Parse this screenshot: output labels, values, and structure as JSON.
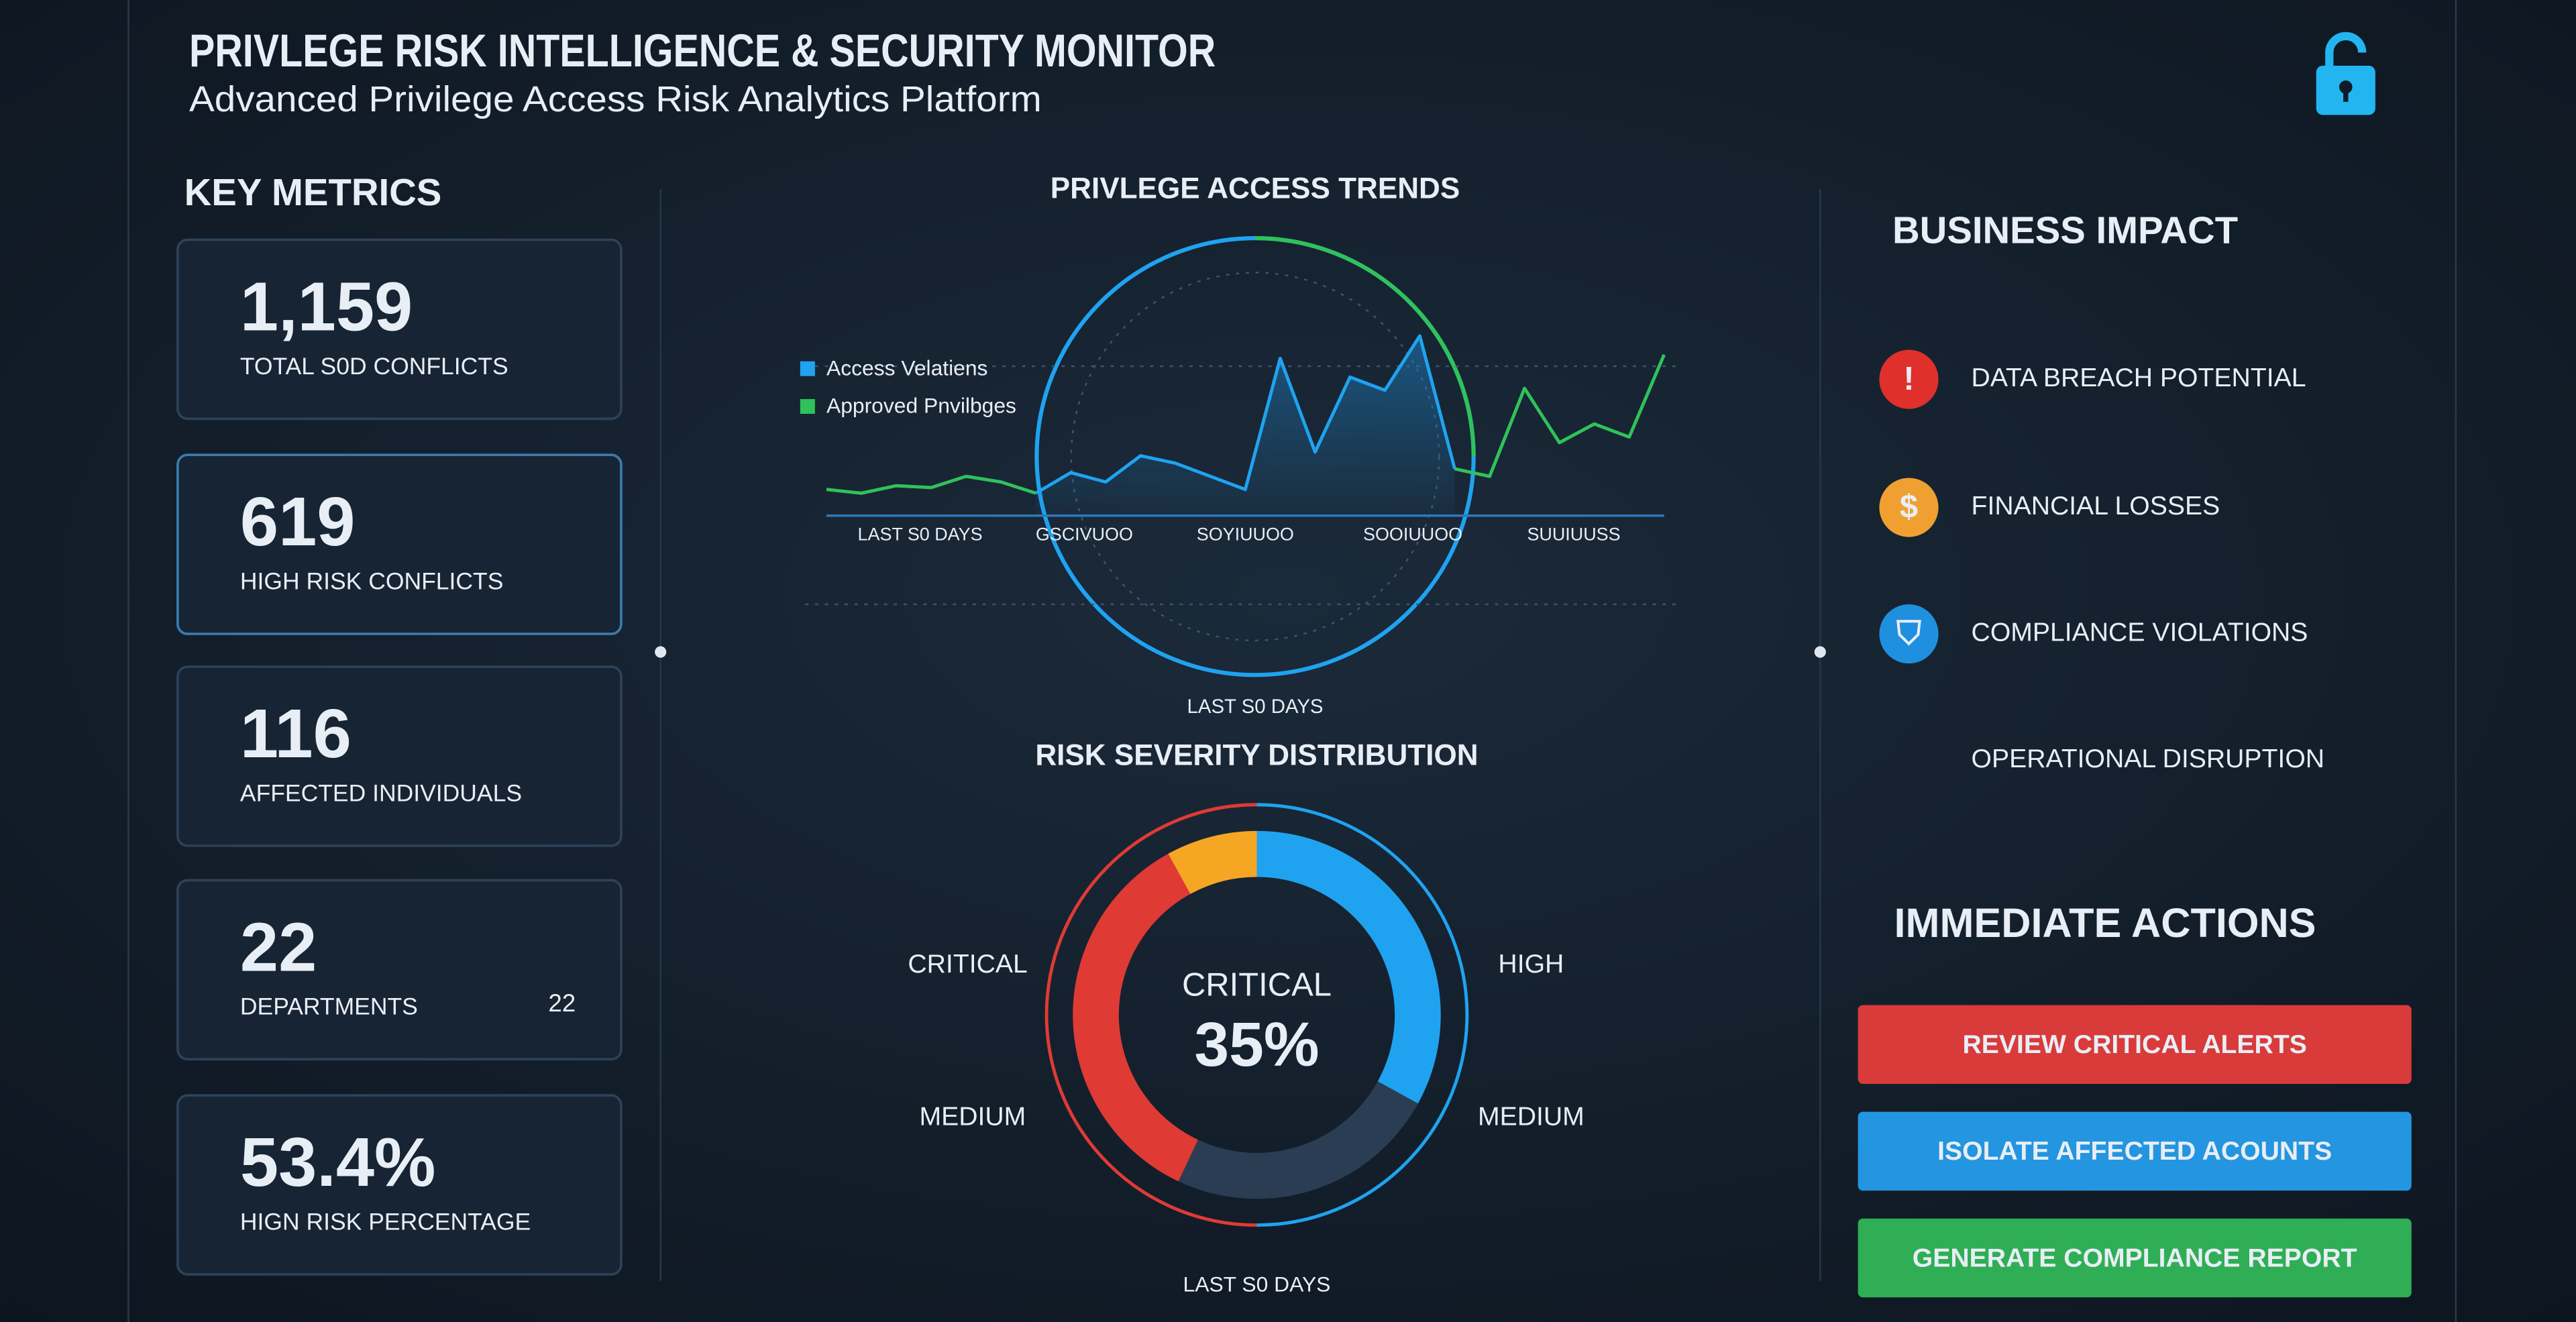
{
  "header": {
    "title": "PRIVLEGE RISK INTELLIGENCE & SECURITY MONITOR",
    "subtitle": "Advanced Privilege Access Risk Analytics Platform"
  },
  "metrics": {
    "heading": "KEY METRICS",
    "cards": [
      {
        "value": "1,159",
        "label": "TOTAL S0D CONFLICTS",
        "color": "#22a9f2"
      },
      {
        "value": "619",
        "label": "HIGH RISK CONFLICTS",
        "color": "#e8403a"
      },
      {
        "value": "116",
        "label": "AFFECTED INDIVIDUALS",
        "color": "#22a9f2"
      },
      {
        "value": "22",
        "label": "DEPARTMENTS",
        "color": "#22a9f2",
        "note": "22"
      },
      {
        "value": "53.4%",
        "label": "HIGN RISK PERCENTAGE",
        "color": "#f5a623"
      }
    ]
  },
  "chart_data": [
    {
      "type": "line",
      "title": "PRIVLEGE ACCESS TRENDS",
      "ylim": [
        0,
        100
      ],
      "series": [
        {
          "name": "Access Velatiens",
          "color": "#1fa3f0",
          "values": [
            null,
            null,
            null,
            null,
            null,
            null,
            12,
            23,
            18,
            32,
            28,
            21,
            14,
            84,
            34,
            74,
            67,
            96,
            25,
            null,
            null,
            null,
            null,
            null,
            null
          ]
        },
        {
          "name": "Approved Pnvilbges",
          "color": "#2fc25b",
          "values": [
            14,
            12,
            16,
            15,
            21,
            18,
            12,
            null,
            null,
            null,
            null,
            null,
            null,
            null,
            null,
            null,
            null,
            null,
            25,
            21,
            68,
            39,
            49,
            42,
            86
          ]
        }
      ],
      "xtick_labels": [
        "LAST S0 DAYS",
        "GSCIVUOO",
        "SOYIUUOO",
        "SOOIUUOO",
        "SUUIUUSS"
      ],
      "footnote": "LAST S0 DAYS"
    },
    {
      "type": "donut",
      "title": "RISK SEVERITY DISTRIBUTION",
      "categories": [
        "HIGH",
        "MEDIUM",
        "CRITICAL",
        "MEDIUM"
      ],
      "values": [
        33,
        24,
        35,
        8
      ],
      "colors": [
        "#1fa3f0",
        "#2a3d52",
        "#e03a35",
        "#f5a623"
      ],
      "center": {
        "label": "CRITICAL",
        "value": 35,
        "value_label": "35%"
      },
      "footnote": "LAST S0 DAYS"
    }
  ],
  "impact": {
    "heading": "BUSINESS IMPACT",
    "items": [
      "DATA BREACH POTENTIAL",
      "FINANCIAL LOSSES",
      "COMPLIANCE VIOLATIONS",
      "OPERATIONAL DISRUPTION"
    ]
  },
  "actions": {
    "heading": "IMMEDIATE ACTIONS",
    "buttons": [
      "REVIEW CRITICAL ALERTS",
      "ISOLATE AFFECTED ACOUNTS",
      "GENERATE COMPLIANCE REPORT"
    ]
  }
}
